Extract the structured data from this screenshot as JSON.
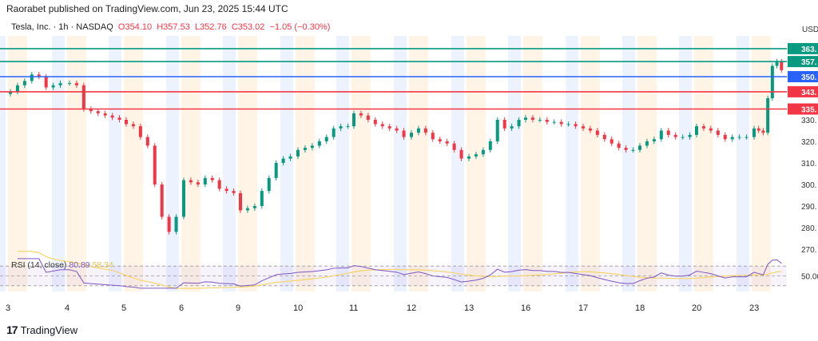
{
  "header": {
    "published": "Raorabet published on TradingView.com, Jun 23, 2025 15:44 UTC"
  },
  "legend": {
    "symbol": "Tesla, Inc. · 1h · NASDAQ",
    "open": "O354.10",
    "high": "H357.53",
    "low": "L352.76",
    "close": "C353.02",
    "change": "−1.05 (−0.30%)"
  },
  "currency": "USD",
  "rsi": {
    "label": "RSI (14, close)",
    "value": "80.89",
    "ma": "58.34",
    "mid_label": "50.00",
    "line_color": "#7e57c2",
    "ma_color": "#f5d56a"
  },
  "brand": "TradingView",
  "colors": {
    "up": "#089981",
    "down": "#f23645",
    "blue": "#2962ff"
  },
  "chart_data": {
    "type": "candlestick",
    "title": "Tesla, Inc. · 1h · NASDAQ",
    "x_ticks": [
      "3",
      "4",
      "5",
      "6",
      "9",
      "10",
      "11",
      "12",
      "13",
      "16",
      "17",
      "18",
      "20",
      "23"
    ],
    "y_ticks": [
      330,
      320,
      310,
      300,
      290,
      280,
      270
    ],
    "ylim": [
      265,
      366
    ],
    "start_open": 342,
    "closes_by_day": [
      [
        343,
        346,
        348,
        351,
        350,
        345,
        346,
        347
      ],
      [
        347,
        346,
        335,
        334,
        333,
        332,
        331,
        330
      ],
      [
        328,
        327,
        322,
        318,
        300,
        285,
        278,
        285
      ],
      [
        302,
        301,
        300,
        303,
        302,
        298,
        297,
        296
      ],
      [
        288,
        289,
        290,
        297,
        303,
        310,
        312,
        313
      ],
      [
        316,
        317,
        318,
        320,
        322,
        326,
        327,
        327
      ],
      [
        333,
        332,
        330,
        328,
        327,
        326,
        325,
        322
      ],
      [
        324,
        326,
        324,
        321,
        320,
        319,
        316,
        312
      ],
      [
        313,
        314,
        316,
        320,
        330,
        326,
        327,
        330
      ],
      [
        331,
        330,
        330,
        329,
        329,
        328,
        328,
        327
      ],
      [
        326,
        325,
        323,
        321,
        319,
        317,
        316,
        316
      ],
      [
        318,
        320,
        321,
        325,
        323,
        322,
        322,
        323
      ],
      [
        327,
        326,
        325,
        323,
        321,
        322,
        322,
        322
      ],
      [
        326,
        325,
        324,
        340,
        355,
        357,
        353
      ]
    ],
    "levels": [
      {
        "value": 363,
        "label": "363.",
        "color": "#089981"
      },
      {
        "value": 357,
        "label": "357.",
        "color": "#089981"
      },
      {
        "value": 350,
        "label": "350.",
        "color": "#2962ff"
      },
      {
        "value": 343,
        "label": "343.",
        "color": "#f23645"
      },
      {
        "value": 335,
        "label": "335.",
        "color": "#f23645"
      }
    ],
    "grid": false
  }
}
